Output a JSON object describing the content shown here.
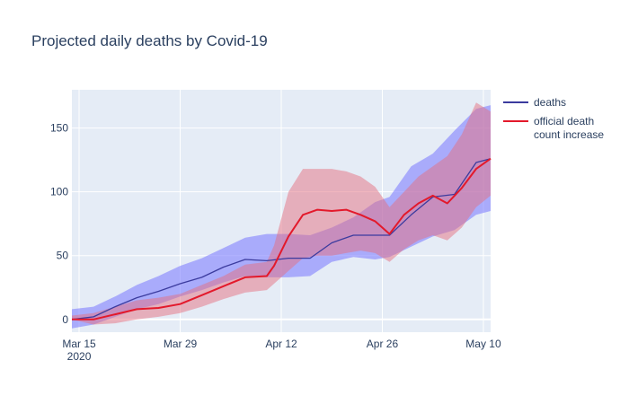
{
  "chart_data": {
    "type": "line",
    "title": "Projected daily deaths by Covid-19",
    "xlabel": "",
    "ylabel": "",
    "x_ticks": [
      {
        "date": "2020-03-15",
        "label": "Mar 15",
        "sublabel": "2020"
      },
      {
        "date": "2020-03-29",
        "label": "Mar 29",
        "sublabel": ""
      },
      {
        "date": "2020-04-12",
        "label": "Apr 12",
        "sublabel": ""
      },
      {
        "date": "2020-04-26",
        "label": "Apr 26",
        "sublabel": ""
      },
      {
        "date": "2020-05-10",
        "label": "May 10",
        "sublabel": ""
      }
    ],
    "xlim": [
      "2020-03-14",
      "2020-05-11"
    ],
    "ylim": [
      -10,
      180
    ],
    "y_ticks": [
      {
        "value": 0,
        "label": "0"
      },
      {
        "value": 50,
        "label": "50"
      },
      {
        "value": 100,
        "label": "100"
      },
      {
        "value": 150,
        "label": "150"
      }
    ],
    "grid": true,
    "legend_position": "top-right",
    "colors": {
      "plot_bg": "#e5ecf6",
      "grid": "#ffffff",
      "deaths": "#3b3b9e",
      "deaths_band": "#8080ff",
      "official": "#e3192b",
      "official_band": "#e6707f",
      "text": "#2a3f5f"
    },
    "series": [
      {
        "name": "deaths",
        "x": [
          "2020-03-14",
          "2020-03-17",
          "2020-03-20",
          "2020-03-23",
          "2020-03-26",
          "2020-03-29",
          "2020-04-01",
          "2020-04-04",
          "2020-04-07",
          "2020-04-10",
          "2020-04-13",
          "2020-04-16",
          "2020-04-19",
          "2020-04-22",
          "2020-04-25",
          "2020-04-27",
          "2020-04-30",
          "2020-05-03",
          "2020-05-06",
          "2020-05-09",
          "2020-05-11"
        ],
        "values": [
          0,
          2,
          10,
          17,
          22,
          28,
          33,
          41,
          47,
          46,
          48,
          48,
          60,
          66,
          66,
          66,
          82,
          96,
          98,
          123,
          126
        ],
        "lower": [
          -7,
          -4,
          2,
          8,
          12,
          18,
          23,
          29,
          34,
          33,
          33,
          34,
          45,
          49,
          47,
          49,
          57,
          65,
          70,
          82,
          85
        ],
        "upper": [
          8,
          10,
          18,
          27,
          34,
          42,
          48,
          56,
          64,
          67,
          67,
          66,
          72,
          80,
          92,
          96,
          120,
          130,
          148,
          165,
          168
        ]
      },
      {
        "name": "official death count increase",
        "legend_lines": [
          "official death",
          "count increase"
        ],
        "x": [
          "2020-03-14",
          "2020-03-17",
          "2020-03-20",
          "2020-03-23",
          "2020-03-26",
          "2020-03-29",
          "2020-04-01",
          "2020-04-04",
          "2020-04-07",
          "2020-04-10",
          "2020-04-11",
          "2020-04-13",
          "2020-04-15",
          "2020-04-17",
          "2020-04-19",
          "2020-04-21",
          "2020-04-23",
          "2020-04-25",
          "2020-04-27",
          "2020-04-29",
          "2020-05-01",
          "2020-05-03",
          "2020-05-05",
          "2020-05-07",
          "2020-05-09",
          "2020-05-11"
        ],
        "values": [
          0,
          0,
          4,
          8,
          9,
          12,
          19,
          26,
          33,
          34,
          42,
          65,
          82,
          86,
          85,
          86,
          82,
          77,
          67,
          82,
          91,
          97,
          91,
          103,
          118,
          126
        ],
        "lower": [
          0,
          -4,
          -3,
          0,
          2,
          5,
          10,
          16,
          21,
          23,
          28,
          38,
          48,
          50,
          50,
          52,
          54,
          52,
          45,
          55,
          62,
          66,
          62,
          72,
          88,
          97
        ],
        "upper": [
          3,
          5,
          10,
          15,
          17,
          20,
          27,
          34,
          43,
          45,
          58,
          100,
          118,
          118,
          118,
          116,
          112,
          104,
          88,
          100,
          112,
          120,
          128,
          145,
          170,
          163
        ]
      }
    ]
  }
}
